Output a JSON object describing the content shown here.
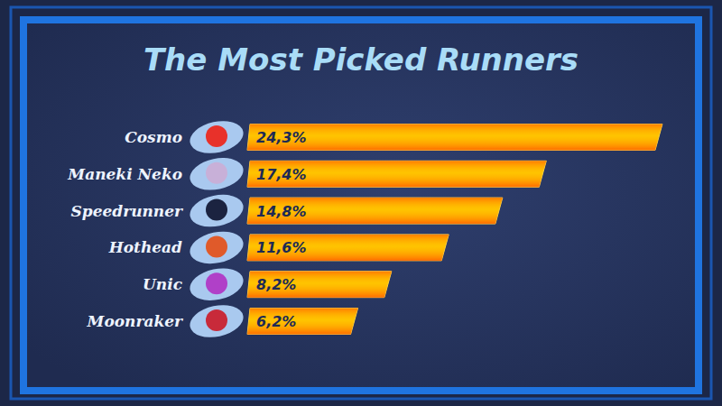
{
  "chart_data": {
    "type": "bar",
    "title": "The Most Picked Runners",
    "orientation": "horizontal",
    "categories": [
      "Cosmo",
      "Maneki Neko",
      "Speedrunner",
      "Hothead",
      "Unic",
      "Moonraker"
    ],
    "values": [
      24.3,
      17.4,
      14.8,
      11.6,
      8.2,
      6.2
    ],
    "value_labels": [
      "24,3%",
      "17,4%",
      "14,8%",
      "11,6%",
      "8,2%",
      "6,2%"
    ],
    "data_labels": true,
    "color": "#ffb400",
    "xlim": [
      0,
      25
    ],
    "tick_labels": false,
    "grid": false
  }
}
